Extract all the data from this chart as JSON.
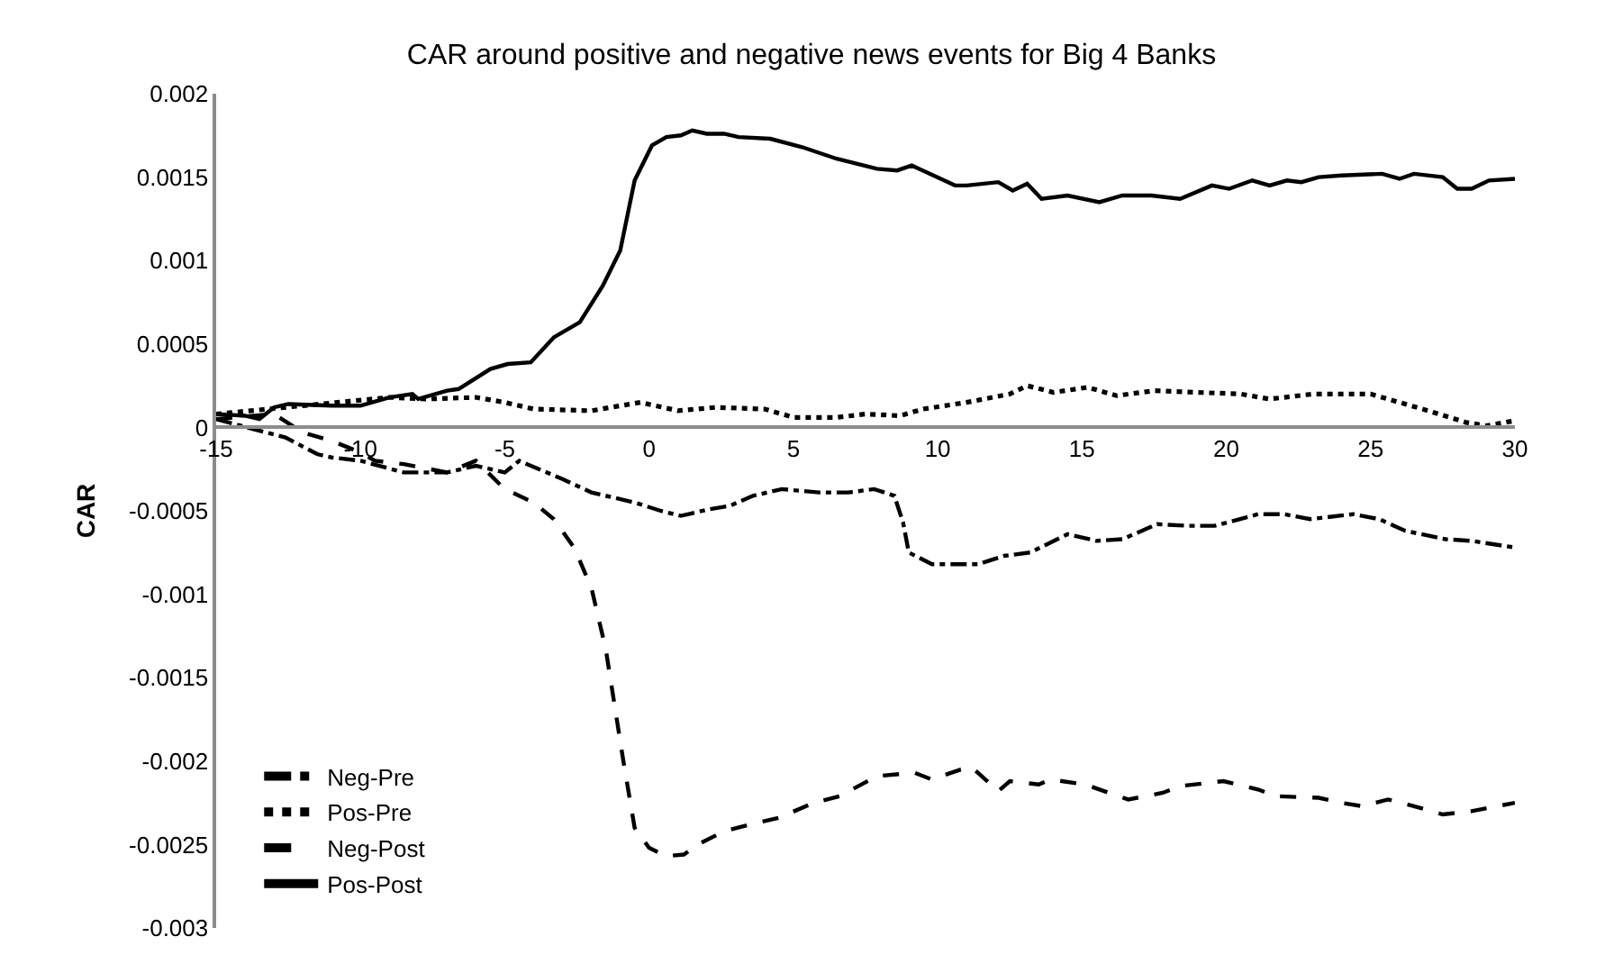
{
  "chart_data": {
    "type": "line",
    "title": "CAR around positive and negative news events for Big 4 Banks",
    "ylabel": "CAR",
    "xlim": [
      -15,
      30
    ],
    "xticks": [
      -15,
      -10,
      -5,
      0,
      5,
      10,
      15,
      20,
      25,
      30
    ],
    "ylim": [
      -0.003,
      0.002
    ],
    "yticks": [
      {
        "value": -0.003,
        "label": "-0.003"
      },
      {
        "value": -0.0025,
        "label": "-0.0025"
      },
      {
        "value": -0.002,
        "label": "-0.002"
      },
      {
        "value": -0.0015,
        "label": "-0.0015"
      },
      {
        "value": -0.001,
        "label": "-0.001"
      },
      {
        "value": -0.0005,
        "label": "-0.0005"
      },
      {
        "value": 0,
        "label": "0"
      },
      {
        "value": 0.0005,
        "label": "0.0005"
      },
      {
        "value": 0.001,
        "label": "0.001"
      },
      {
        "value": 0.0015,
        "label": "0.0015"
      },
      {
        "value": 0.002,
        "label": "0.002"
      }
    ],
    "grid": false,
    "legend": "bottom left",
    "marker": "none",
    "series": [
      {
        "name": "Neg-Pre",
        "color": "#000000",
        "line_style": "dashdot",
        "x": [
          -15,
          -13.5,
          -12.6,
          -11.5,
          -11,
          -10,
          -8.5,
          -7,
          -6,
          -5,
          -4.5,
          -3,
          -2,
          -0.5,
          0.4,
          1.1,
          2.1,
          2.8,
          3.6,
          4.6,
          5.9,
          6.9,
          7.8,
          8.5,
          8.8,
          9,
          9.8,
          11.4,
          12.3,
          13.2,
          14.5,
          15.5,
          16.4,
          17.6,
          18.7,
          19.6,
          21.1,
          22,
          22.9,
          24.4,
          25.3,
          26.2,
          27.6,
          28.5,
          30
        ],
        "values": [
          5e-05,
          -2e-05,
          -6e-05,
          -0.00016,
          -0.00018,
          -0.0002,
          -0.00027,
          -0.00027,
          -0.00023,
          -0.00027,
          -0.0002,
          -0.00031,
          -0.00039,
          -0.00045,
          -0.0005,
          -0.00053,
          -0.00049,
          -0.00047,
          -0.00041,
          -0.00037,
          -0.00039,
          -0.00039,
          -0.00037,
          -0.00041,
          -0.00057,
          -0.00075,
          -0.00082,
          -0.00082,
          -0.00077,
          -0.00075,
          -0.00064,
          -0.00068,
          -0.00067,
          -0.00058,
          -0.00059,
          -0.00059,
          -0.00052,
          -0.00052,
          -0.00055,
          -0.00052,
          -0.00055,
          -0.00062,
          -0.00067,
          -0.00068,
          -0.00072
        ]
      },
      {
        "name": "Pos-Pre",
        "color": "#000000",
        "line_style": "dotted",
        "x": [
          -15,
          -12,
          -9,
          -7.7,
          -6,
          -5,
          -4,
          -2,
          -0.3,
          1,
          2.3,
          4,
          5,
          6.5,
          7.5,
          8.7,
          9.5,
          11,
          12.5,
          13.1,
          14,
          15.2,
          16.2,
          17.5,
          19,
          20.5,
          21.5,
          23,
          25,
          26,
          27,
          28.3,
          29,
          30
        ],
        "values": [
          8e-05,
          0.00013,
          0.00018,
          0.00017,
          0.00018,
          0.00015,
          0.00011,
          0.0001,
          0.00015,
          0.0001,
          0.00012,
          0.00011,
          6e-05,
          6e-05,
          8e-05,
          7e-05,
          0.00011,
          0.00015,
          0.0002,
          0.00025,
          0.00021,
          0.00024,
          0.00019,
          0.00022,
          0.00021,
          0.0002,
          0.00017,
          0.0002,
          0.0002,
          0.00015,
          0.0001,
          3e-05,
          1e-05,
          4e-05
        ]
      },
      {
        "name": "Neg-Post",
        "color": "#000000",
        "line_style": "dashed",
        "x": [
          -15,
          -13,
          -12,
          -11,
          -10,
          -9.5,
          -8.5,
          -7,
          -6,
          -5,
          -4,
          -3.3,
          -2.6,
          -2,
          -1.5,
          -1.2,
          -0.9,
          -0.5,
          0,
          0.6,
          1.2,
          1.8,
          2.6,
          3.5,
          4.5,
          5.7,
          6.6,
          7.9,
          9.2,
          9.8,
          10.8,
          11.2,
          12.1,
          12.5,
          13.5,
          13.9,
          15.1,
          16.6,
          17.8,
          18.4,
          19.9,
          21.1,
          21.7,
          23.2,
          24,
          24.7,
          25.6,
          26.5,
          27.5,
          28.5,
          30
        ],
        "values": [
          5e-05,
          8e-05,
          -3e-05,
          -8e-05,
          -0.00015,
          -0.0002,
          -0.00022,
          -0.00027,
          -0.0002,
          -0.00037,
          -0.00045,
          -0.00055,
          -0.00072,
          -0.00096,
          -0.00133,
          -0.00166,
          -0.00199,
          -0.0024,
          -0.00252,
          -0.00257,
          -0.00256,
          -0.00249,
          -0.00242,
          -0.00238,
          -0.00234,
          -0.00225,
          -0.00221,
          -0.00209,
          -0.00207,
          -0.00211,
          -0.00205,
          -0.00204,
          -0.00218,
          -0.00212,
          -0.00214,
          -0.00211,
          -0.00214,
          -0.00223,
          -0.00219,
          -0.00215,
          -0.00212,
          -0.00217,
          -0.00221,
          -0.00222,
          -0.00225,
          -0.00227,
          -0.00223,
          -0.00227,
          -0.00232,
          -0.0023,
          -0.00225
        ]
      },
      {
        "name": "Pos-Post",
        "color": "#000000",
        "line_style": "solid",
        "x": [
          -15,
          -14,
          -13.5,
          -13,
          -12.5,
          -11,
          -10,
          -9,
          -8.2,
          -8,
          -7,
          -6.6,
          -5.5,
          -4.9,
          -4.1,
          -3.3,
          -2.4,
          -1.6,
          -1,
          -0.5,
          0.1,
          0.6,
          1.1,
          1.5,
          2,
          2.6,
          3.1,
          4.2,
          5.3,
          6.5,
          7.9,
          8.6,
          9.1,
          10.6,
          11,
          12.1,
          12.6,
          13.1,
          13.6,
          14.5,
          15.6,
          16.4,
          17.4,
          18.4,
          19.5,
          20.1,
          20.9,
          21.5,
          22.1,
          22.6,
          23.2,
          24,
          25.4,
          26,
          26.5,
          27.5,
          28,
          28.5,
          29.1,
          30
        ],
        "values": [
          8e-05,
          7e-05,
          5e-05,
          0.00012,
          0.00014,
          0.00013,
          0.00013,
          0.00018,
          0.0002,
          0.00017,
          0.00022,
          0.00023,
          0.00035,
          0.00038,
          0.00039,
          0.00054,
          0.00063,
          0.00085,
          0.00106,
          0.00148,
          0.00169,
          0.00174,
          0.00175,
          0.00178,
          0.00176,
          0.00176,
          0.00174,
          0.00173,
          0.00168,
          0.00161,
          0.00155,
          0.00154,
          0.00157,
          0.00145,
          0.00145,
          0.00147,
          0.00142,
          0.00146,
          0.00137,
          0.00139,
          0.00135,
          0.00139,
          0.00139,
          0.00137,
          0.00145,
          0.00143,
          0.00148,
          0.00145,
          0.00148,
          0.00147,
          0.0015,
          0.00151,
          0.00152,
          0.00149,
          0.00152,
          0.0015,
          0.00143,
          0.00143,
          0.00148,
          0.00149
        ]
      }
    ]
  }
}
